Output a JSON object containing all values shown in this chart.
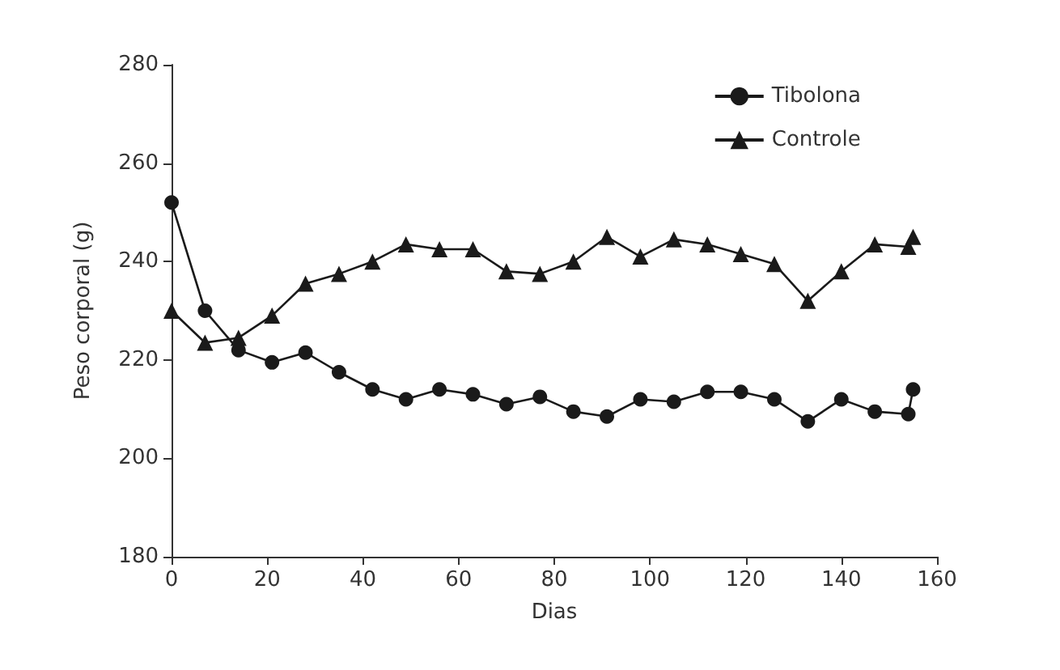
{
  "chart_data": {
    "type": "line",
    "xlabel": "Dias",
    "ylabel": "Peso corporal (g)",
    "xlim": [
      0,
      160
    ],
    "xticks": [
      0,
      20,
      40,
      60,
      80,
      100,
      120,
      140,
      160
    ],
    "ylim": [
      180,
      280
    ],
    "yticks": [
      180,
      200,
      220,
      240,
      260,
      280
    ],
    "grid": false,
    "legend": "top right",
    "x": [
      0,
      7,
      14,
      21,
      28,
      35,
      42,
      49,
      56,
      63,
      70,
      77,
      84,
      91,
      98,
      105,
      112,
      119,
      126,
      133,
      140,
      147,
      154,
      155
    ],
    "series": [
      {
        "name": "Tibolona",
        "color": "#1a1a1a",
        "marker": "circle",
        "values": [
          252,
          230,
          222,
          219.5,
          221.5,
          217.5,
          214,
          212,
          214,
          213,
          211,
          212.5,
          209.5,
          208.5,
          212,
          211.5,
          213.5,
          213.5,
          212,
          207.5,
          212,
          209.5,
          209,
          214
        ]
      },
      {
        "name": "Controle",
        "color": "#1a1a1a",
        "marker": "triangle",
        "values": [
          230,
          223.5,
          224.5,
          229,
          235.5,
          237.5,
          240,
          243.5,
          242.5,
          242.5,
          238,
          237.5,
          240,
          245,
          241,
          244.5,
          243.5,
          241.5,
          239.5,
          232,
          238,
          243.5,
          243,
          245
        ]
      }
    ]
  }
}
